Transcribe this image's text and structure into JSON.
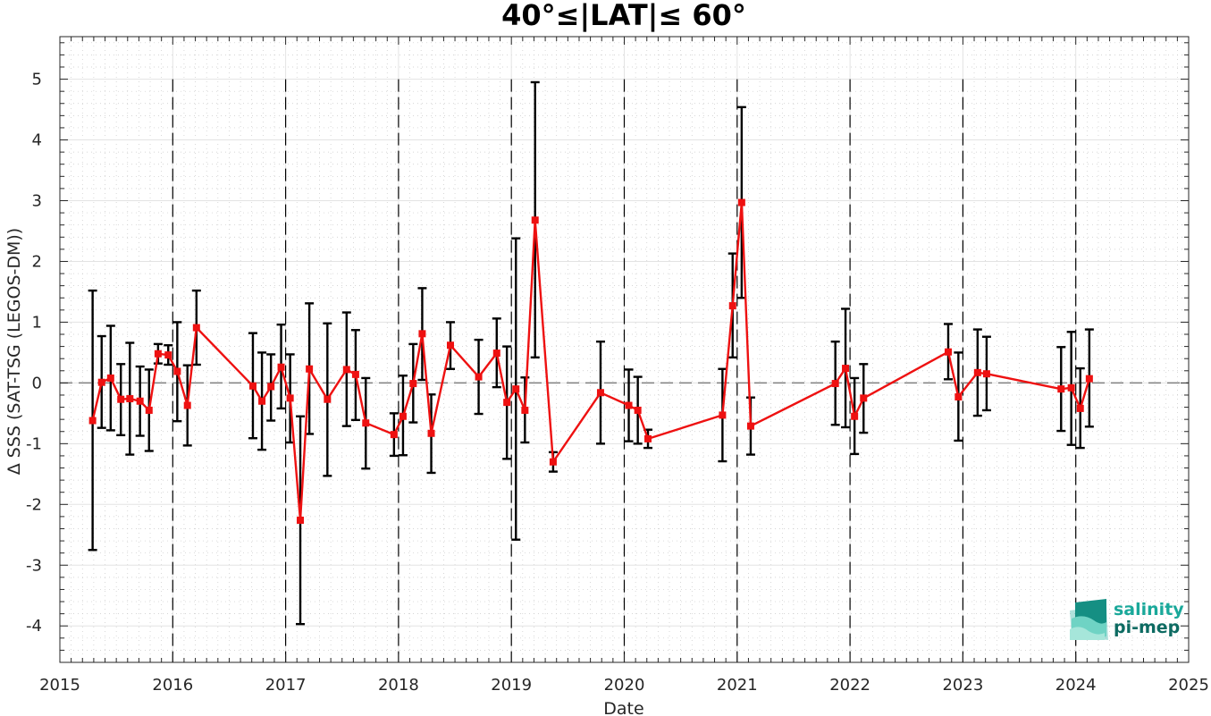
{
  "chart_data": {
    "type": "line",
    "title": "40°≤|LAT|≤ 60°",
    "xlabel": "Date",
    "ylabel": "Δ SSS (SAT-TSG (LEGOS-DM))",
    "xlim": [
      2015,
      2025
    ],
    "ylim": [
      -4.6,
      5.7
    ],
    "x_ticks": [
      2015,
      2016,
      2017,
      2018,
      2019,
      2020,
      2021,
      2022,
      2023,
      2024,
      2025
    ],
    "x_tick_labels": [
      "2015",
      "2016",
      "2017",
      "2018",
      "2019",
      "2020",
      "2021",
      "2022",
      "2023",
      "2024",
      "2025"
    ],
    "y_ticks": [
      -4,
      -3,
      -2,
      -1,
      0,
      1,
      2,
      3,
      4,
      5
    ],
    "y_tick_labels": [
      "-4",
      "-3",
      "-2",
      "-1",
      "0",
      "1",
      "2",
      "3",
      "4",
      "5"
    ],
    "grid": true,
    "reference_line": 0,
    "year_boundaries": [
      2016,
      2017,
      2018,
      2019,
      2020,
      2021,
      2022,
      2023,
      2024
    ],
    "colors": {
      "series": "#ee1111",
      "errorbar": "#000000",
      "zero_line": "#808080"
    },
    "series": [
      {
        "points": [
          {
            "x": 2015.29,
            "y": -0.62,
            "lo": -2.75,
            "hi": 1.52
          },
          {
            "x": 2015.37,
            "y": 0.01,
            "lo": -0.74,
            "hi": 0.77
          },
          {
            "x": 2015.45,
            "y": 0.08,
            "lo": -0.78,
            "hi": 0.94
          },
          {
            "x": 2015.54,
            "y": -0.27,
            "lo": -0.86,
            "hi": 0.31
          },
          {
            "x": 2015.62,
            "y": -0.26,
            "lo": -1.18,
            "hi": 0.66
          },
          {
            "x": 2015.71,
            "y": -0.3,
            "lo": -0.87,
            "hi": 0.27
          },
          {
            "x": 2015.79,
            "y": -0.45,
            "lo": -1.12,
            "hi": 0.22
          },
          {
            "x": 2015.87,
            "y": 0.48,
            "lo": 0.32,
            "hi": 0.64
          },
          {
            "x": 2015.96,
            "y": 0.46,
            "lo": 0.3,
            "hi": 0.62
          },
          {
            "x": 2016.04,
            "y": 0.19,
            "lo": -0.63,
            "hi": 1.0
          },
          {
            "x": 2016.13,
            "y": -0.37,
            "lo": -1.03,
            "hi": 0.29
          },
          {
            "x": 2016.21,
            "y": 0.91,
            "lo": 0.3,
            "hi": 1.52
          },
          {
            "x": 2016.71,
            "y": -0.05,
            "lo": -0.91,
            "hi": 0.82
          },
          {
            "x": 2016.79,
            "y": -0.3,
            "lo": -1.1,
            "hi": 0.5
          },
          {
            "x": 2016.87,
            "y": -0.06,
            "lo": -0.62,
            "hi": 0.47
          },
          {
            "x": 2016.96,
            "y": 0.26,
            "lo": -0.42,
            "hi": 0.96
          },
          {
            "x": 2017.04,
            "y": -0.25,
            "lo": -0.98,
            "hi": 0.47
          },
          {
            "x": 2017.13,
            "y": -2.26,
            "lo": -3.97,
            "hi": -0.55
          },
          {
            "x": 2017.21,
            "y": 0.23,
            "lo": -0.84,
            "hi": 1.31
          },
          {
            "x": 2017.37,
            "y": -0.27,
            "lo": -1.53,
            "hi": 0.98
          },
          {
            "x": 2017.54,
            "y": 0.22,
            "lo": -0.71,
            "hi": 1.16
          },
          {
            "x": 2017.62,
            "y": 0.14,
            "lo": -0.61,
            "hi": 0.87
          },
          {
            "x": 2017.71,
            "y": -0.66,
            "lo": -1.41,
            "hi": 0.08
          },
          {
            "x": 2017.96,
            "y": -0.85,
            "lo": -1.2,
            "hi": -0.5
          },
          {
            "x": 2018.04,
            "y": -0.55,
            "lo": -1.19,
            "hi": 0.12
          },
          {
            "x": 2018.13,
            "y": -0.01,
            "lo": -0.65,
            "hi": 0.64
          },
          {
            "x": 2018.21,
            "y": 0.81,
            "lo": 0.05,
            "hi": 1.56
          },
          {
            "x": 2018.29,
            "y": -0.83,
            "lo": -1.48,
            "hi": -0.19
          },
          {
            "x": 2018.46,
            "y": 0.62,
            "lo": 0.23,
            "hi": 1.0
          },
          {
            "x": 2018.71,
            "y": 0.1,
            "lo": -0.51,
            "hi": 0.71
          },
          {
            "x": 2018.87,
            "y": 0.49,
            "lo": -0.07,
            "hi": 1.06
          },
          {
            "x": 2018.96,
            "y": -0.32,
            "lo": -1.25,
            "hi": 0.6
          },
          {
            "x": 2019.04,
            "y": -0.1,
            "lo": -2.58,
            "hi": 2.38
          },
          {
            "x": 2019.12,
            "y": -0.45,
            "lo": -0.98,
            "hi": 0.09
          },
          {
            "x": 2019.21,
            "y": 2.68,
            "lo": 0.42,
            "hi": 4.95
          },
          {
            "x": 2019.37,
            "y": -1.3,
            "lo": -1.46,
            "hi": -1.14
          },
          {
            "x": 2019.79,
            "y": -0.16,
            "lo": -1.0,
            "hi": 0.68
          },
          {
            "x": 2020.04,
            "y": -0.37,
            "lo": -0.96,
            "hi": 0.22
          },
          {
            "x": 2020.12,
            "y": -0.45,
            "lo": -1.0,
            "hi": 0.1
          },
          {
            "x": 2020.21,
            "y": -0.92,
            "lo": -1.07,
            "hi": -0.77
          },
          {
            "x": 2020.87,
            "y": -0.53,
            "lo": -1.29,
            "hi": 0.23
          },
          {
            "x": 2020.96,
            "y": 1.27,
            "lo": 0.42,
            "hi": 2.13
          },
          {
            "x": 2021.04,
            "y": 2.97,
            "lo": 1.4,
            "hi": 4.54
          },
          {
            "x": 2021.12,
            "y": -0.71,
            "lo": -1.18,
            "hi": -0.24
          },
          {
            "x": 2021.87,
            "y": -0.01,
            "lo": -0.69,
            "hi": 0.68
          },
          {
            "x": 2021.96,
            "y": 0.24,
            "lo": -0.73,
            "hi": 1.22
          },
          {
            "x": 2022.04,
            "y": -0.55,
            "lo": -1.17,
            "hi": 0.08
          },
          {
            "x": 2022.12,
            "y": -0.25,
            "lo": -0.82,
            "hi": 0.31
          },
          {
            "x": 2022.87,
            "y": 0.51,
            "lo": 0.06,
            "hi": 0.97
          },
          {
            "x": 2022.96,
            "y": -0.23,
            "lo": -0.95,
            "hi": 0.5
          },
          {
            "x": 2023.13,
            "y": 0.17,
            "lo": -0.54,
            "hi": 0.88
          },
          {
            "x": 2023.21,
            "y": 0.15,
            "lo": -0.45,
            "hi": 0.76
          },
          {
            "x": 2023.87,
            "y": -0.1,
            "lo": -0.79,
            "hi": 0.59
          },
          {
            "x": 2023.96,
            "y": -0.08,
            "lo": -1.02,
            "hi": 0.84
          },
          {
            "x": 2024.04,
            "y": -0.42,
            "lo": -1.07,
            "hi": 0.24
          },
          {
            "x": 2024.12,
            "y": 0.07,
            "lo": -0.72,
            "hi": 0.88
          }
        ]
      }
    ]
  },
  "logo": {
    "line1": "salinity",
    "line2": "pi-mep",
    "color": "#1aa89a",
    "dark_color": "#0d6b62"
  }
}
